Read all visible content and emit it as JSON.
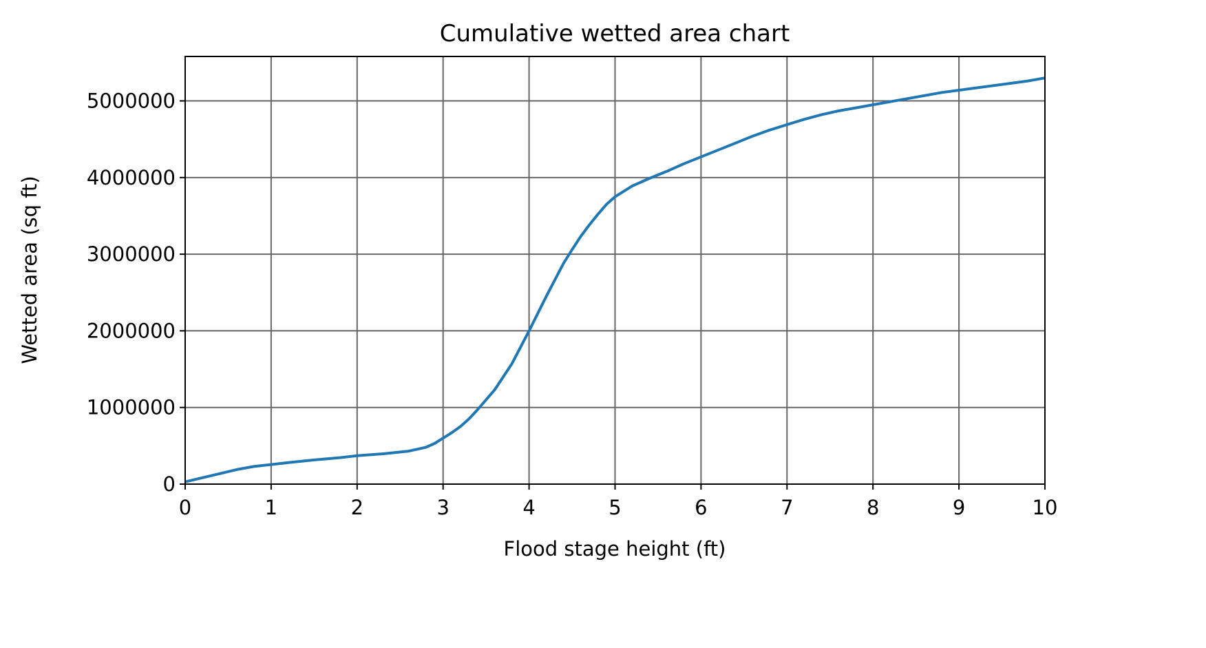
{
  "chart_data": {
    "type": "line",
    "title": "Cumulative wetted area chart",
    "xlabel": "Flood stage height (ft)",
    "ylabel": "Wetted area (sq ft)",
    "xlim": [
      0,
      10
    ],
    "ylim": [
      0,
      5580000
    ],
    "grid": true,
    "xticks": [
      0,
      1,
      2,
      3,
      4,
      5,
      6,
      7,
      8,
      9,
      10
    ],
    "xtick_labels": [
      "0",
      "1",
      "2",
      "3",
      "4",
      "5",
      "6",
      "7",
      "8",
      "9",
      "10"
    ],
    "yticks": [
      0,
      1000000,
      2000000,
      3000000,
      4000000,
      5000000
    ],
    "ytick_labels": [
      "0",
      "1000000",
      "2000000",
      "3000000",
      "4000000",
      "5000000"
    ],
    "colors": {
      "line": "#1f77b4",
      "grid": "#666666",
      "axes": "#000000"
    },
    "series": [
      {
        "x": [
          0,
          0.3,
          0.6,
          0.8,
          1.0,
          1.2,
          1.5,
          1.8,
          2.0,
          2.3,
          2.6,
          2.8,
          2.9,
          3.0,
          3.1,
          3.2,
          3.3,
          3.4,
          3.6,
          3.8,
          4.0,
          4.2,
          4.4,
          4.5,
          4.6,
          4.7,
          4.8,
          4.9,
          5.0,
          5.2,
          5.4,
          5.6,
          5.8,
          6.0,
          6.2,
          6.4,
          6.6,
          6.8,
          7.0,
          7.2,
          7.4,
          7.6,
          7.8,
          8.0,
          8.2,
          8.4,
          8.6,
          8.8,
          9.0,
          9.2,
          9.4,
          9.6,
          9.8,
          10.0
        ],
        "y": [
          30000,
          110000,
          190000,
          230000,
          255000,
          280000,
          315000,
          345000,
          370000,
          395000,
          430000,
          480000,
          530000,
          600000,
          670000,
          750000,
          850000,
          970000,
          1230000,
          1570000,
          2000000,
          2450000,
          2880000,
          3060000,
          3230000,
          3380000,
          3520000,
          3650000,
          3750000,
          3890000,
          3990000,
          4080000,
          4180000,
          4270000,
          4360000,
          4450000,
          4540000,
          4620000,
          4690000,
          4760000,
          4820000,
          4870000,
          4910000,
          4950000,
          4990000,
          5030000,
          5070000,
          5110000,
          5140000,
          5170000,
          5200000,
          5230000,
          5260000,
          5300000
        ]
      }
    ]
  }
}
